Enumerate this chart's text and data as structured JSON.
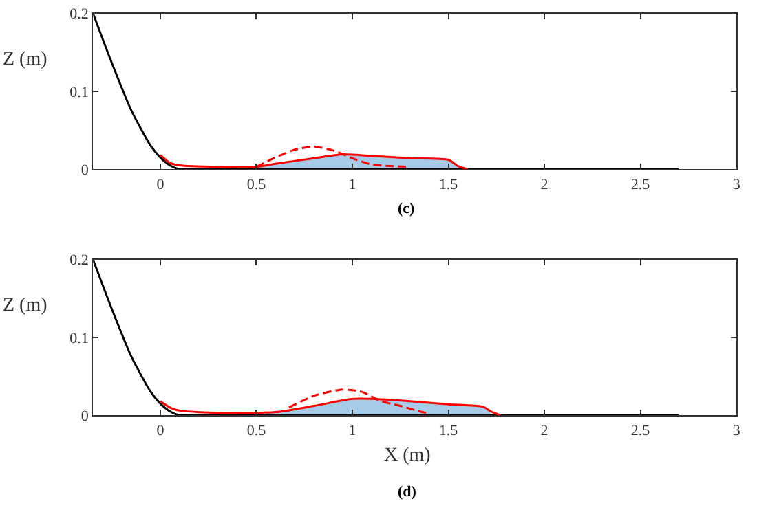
{
  "chart_data": [
    {
      "type": "line",
      "title": "(c)",
      "ylabel": "Z (m)",
      "xlim": [
        -0.35,
        3
      ],
      "ylim": [
        0,
        0.2
      ],
      "xticks": [
        0,
        0.5,
        1,
        1.5,
        2,
        2.5,
        3
      ],
      "yticks": [
        0,
        0.1,
        0.2
      ],
      "series": [
        {
          "type": "area",
          "color": "#a6cbe8",
          "x": [
            0.5,
            0.6,
            0.8,
            0.95,
            1.1,
            1.3,
            1.5,
            1.55
          ],
          "values": [
            0.003,
            0.007,
            0.014,
            0.019,
            0.017,
            0.014,
            0.012,
            0.004
          ]
        },
        {
          "color": "#000000",
          "line_style": "solid",
          "x": [
            -0.35,
            -0.25,
            -0.15,
            -0.05,
            0,
            0.05,
            0.1,
            0.2,
            2.7
          ],
          "values": [
            0.2,
            0.135,
            0.075,
            0.03,
            0.015,
            0.005,
            0,
            0,
            0
          ]
        },
        {
          "color": "#ff0000",
          "line_style": "solid",
          "x": [
            0,
            0.05,
            0.1,
            0.3,
            0.5,
            0.6,
            0.8,
            0.95,
            1.1,
            1.3,
            1.5,
            1.55,
            1.6
          ],
          "values": [
            0.018,
            0.008,
            0.005,
            0.003,
            0.003,
            0.007,
            0.014,
            0.019,
            0.017,
            0.014,
            0.012,
            0.004,
            0
          ]
        },
        {
          "color": "#ff0000",
          "line_style": "dashed",
          "x": [
            0.5,
            0.6,
            0.7,
            0.8,
            0.9,
            1.0,
            1.1,
            1.2,
            1.3
          ],
          "values": [
            0.003,
            0.015,
            0.025,
            0.029,
            0.024,
            0.014,
            0.006,
            0.004,
            0.003
          ]
        }
      ]
    },
    {
      "type": "line",
      "title": "(d)",
      "xlabel": "X (m)",
      "ylabel": "Z (m)",
      "xlim": [
        -0.35,
        3
      ],
      "ylim": [
        0,
        0.2
      ],
      "xticks": [
        0,
        0.5,
        1,
        1.5,
        2,
        2.5,
        3
      ],
      "yticks": [
        0,
        0.1,
        0.2
      ],
      "series": [
        {
          "type": "area",
          "color": "#a6cbe8",
          "x": [
            0.55,
            0.6,
            0.8,
            1.0,
            1.1,
            1.3,
            1.5,
            1.68,
            1.72
          ],
          "values": [
            0.003,
            0.004,
            0.012,
            0.021,
            0.021,
            0.018,
            0.014,
            0.011,
            0.005
          ]
        },
        {
          "color": "#000000",
          "line_style": "solid",
          "x": [
            -0.35,
            -0.25,
            -0.15,
            -0.05,
            0,
            0.05,
            0.1,
            0.2,
            2.7
          ],
          "values": [
            0.2,
            0.135,
            0.075,
            0.03,
            0.015,
            0.005,
            0,
            0,
            0
          ]
        },
        {
          "color": "#ff0000",
          "line_style": "solid",
          "x": [
            0,
            0.05,
            0.1,
            0.3,
            0.6,
            0.8,
            1.0,
            1.1,
            1.3,
            1.5,
            1.68,
            1.72,
            1.77
          ],
          "values": [
            0.018,
            0.01,
            0.006,
            0.003,
            0.004,
            0.012,
            0.021,
            0.021,
            0.018,
            0.014,
            0.011,
            0.005,
            0
          ]
        },
        {
          "color": "#ff0000",
          "line_style": "dashed",
          "x": [
            0.67,
            0.8,
            0.95,
            1.05,
            1.15,
            1.25,
            1.35,
            1.4
          ],
          "values": [
            0.01,
            0.025,
            0.033,
            0.03,
            0.018,
            0.012,
            0.005,
            0.002
          ]
        }
      ]
    }
  ]
}
